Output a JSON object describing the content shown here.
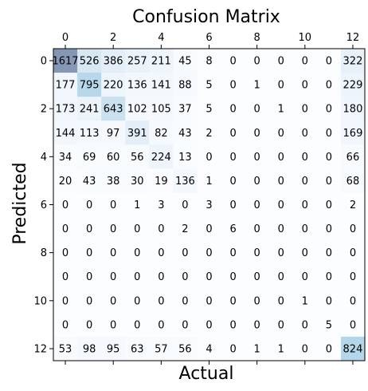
{
  "chart_data": {
    "type": "heatmap",
    "title": "Confusion Matrix",
    "xlabel": "Actual",
    "ylabel": "Predicted",
    "x_axis_position": "top",
    "x_ticks": [
      "0",
      "2",
      "4",
      "6",
      "8",
      "10",
      "12"
    ],
    "y_ticks": [
      "0",
      "2",
      "4",
      "6",
      "8",
      "10",
      "12"
    ],
    "grid": false,
    "colormap": "Blues",
    "color_alpha": 0.5,
    "matrix": [
      [
        1617,
        526,
        386,
        257,
        211,
        45,
        8,
        0,
        0,
        0,
        0,
        0,
        322
      ],
      [
        177,
        795,
        220,
        136,
        141,
        88,
        5,
        0,
        1,
        0,
        0,
        0,
        229
      ],
      [
        173,
        241,
        643,
        102,
        105,
        37,
        5,
        0,
        0,
        1,
        0,
        0,
        180
      ],
      [
        144,
        113,
        97,
        391,
        82,
        43,
        2,
        0,
        0,
        0,
        0,
        0,
        169
      ],
      [
        34,
        69,
        60,
        56,
        224,
        13,
        0,
        0,
        0,
        0,
        0,
        0,
        66
      ],
      [
        20,
        43,
        38,
        30,
        19,
        136,
        1,
        0,
        0,
        0,
        0,
        0,
        68
      ],
      [
        0,
        0,
        0,
        1,
        3,
        0,
        3,
        0,
        0,
        0,
        0,
        0,
        2
      ],
      [
        0,
        0,
        0,
        0,
        0,
        2,
        0,
        6,
        0,
        0,
        0,
        0,
        0
      ],
      [
        0,
        0,
        0,
        0,
        0,
        0,
        0,
        0,
        0,
        0,
        0,
        0,
        0
      ],
      [
        0,
        0,
        0,
        0,
        0,
        0,
        0,
        0,
        0,
        0,
        0,
        0,
        0
      ],
      [
        0,
        0,
        0,
        0,
        0,
        0,
        0,
        0,
        0,
        0,
        1,
        0,
        0
      ],
      [
        0,
        0,
        0,
        0,
        0,
        0,
        0,
        0,
        0,
        0,
        0,
        5,
        0
      ],
      [
        53,
        98,
        95,
        63,
        57,
        56,
        4,
        0,
        1,
        1,
        0,
        0,
        824
      ]
    ]
  }
}
